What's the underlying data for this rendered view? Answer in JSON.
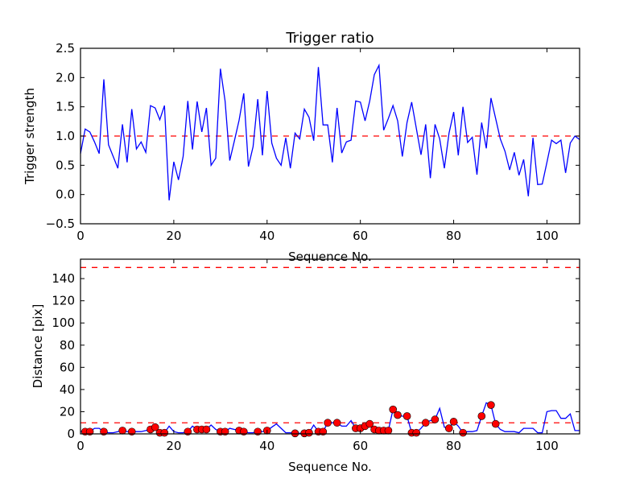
{
  "chart_data": [
    {
      "type": "line",
      "title": "Trigger ratio",
      "xlabel": "Sequence No.",
      "ylabel": "Trigger strength",
      "xlim": [
        0,
        107
      ],
      "ylim": [
        -0.5,
        2.5
      ],
      "xticks": [
        0,
        20,
        40,
        60,
        80,
        100
      ],
      "yticks": [
        -0.5,
        0.0,
        0.5,
        1.0,
        1.5,
        2.0,
        2.5
      ],
      "ytick_labels": [
        "−0.5",
        "0.0",
        "0.5",
        "1.0",
        "1.5",
        "2.0",
        "2.5"
      ],
      "grid": false,
      "thresholds": [
        {
          "value": 1.0,
          "color": "#ff0000",
          "style": "dashed"
        }
      ],
      "series": [
        {
          "name": "trigger strength",
          "color": "#0000ff",
          "values": [
            0.7,
            1.12,
            1.07,
            0.9,
            0.7,
            1.97,
            0.85,
            0.65,
            0.45,
            1.2,
            0.55,
            1.46,
            0.78,
            0.9,
            0.72,
            1.52,
            1.48,
            1.28,
            1.52,
            -0.1,
            0.56,
            0.25,
            0.65,
            1.6,
            0.77,
            1.59,
            1.07,
            1.48,
            0.5,
            0.62,
            2.15,
            1.6,
            0.58,
            0.92,
            1.27,
            1.73,
            0.48,
            0.82,
            1.63,
            0.67,
            1.77,
            0.88,
            0.62,
            0.5,
            0.97,
            0.45,
            1.05,
            0.95,
            1.46,
            1.32,
            0.92,
            2.18,
            1.19,
            1.19,
            0.55,
            1.48,
            0.71,
            0.9,
            0.93,
            1.6,
            1.58,
            1.26,
            1.6,
            2.05,
            2.21,
            1.1,
            1.3,
            1.52,
            1.26,
            0.65,
            1.23,
            1.58,
            1.13,
            0.68,
            1.2,
            0.28,
            1.2,
            0.95,
            0.45,
            1.05,
            1.41,
            0.67,
            1.5,
            0.89,
            0.98,
            0.34,
            1.23,
            0.79,
            1.65,
            1.3,
            0.95,
            0.74,
            0.42,
            0.72,
            0.33,
            0.6,
            -0.03,
            0.97,
            0.17,
            0.18,
            0.55,
            0.93,
            0.87,
            0.93,
            0.37,
            0.88,
            1.0,
            0.94
          ]
        }
      ]
    },
    {
      "type": "line",
      "title": "",
      "xlabel": "Sequence No.",
      "ylabel": "Distance [pix]",
      "xlim": [
        0,
        107
      ],
      "ylim": [
        0,
        157.5
      ],
      "xticks": [
        0,
        20,
        40,
        60,
        80,
        100
      ],
      "yticks": [
        0,
        20,
        40,
        60,
        80,
        100,
        120,
        140
      ],
      "grid": false,
      "thresholds": [
        {
          "value": 10,
          "color": "#ff0000",
          "style": "dashed"
        },
        {
          "value": 150,
          "color": "#ff0000",
          "style": "dashed"
        }
      ],
      "series": [
        {
          "name": "distance",
          "color": "#0000ff",
          "values": [
            2,
            2,
            2,
            5,
            5,
            2,
            1,
            1,
            2,
            3,
            2,
            2,
            2,
            2,
            3,
            4,
            6,
            1,
            1,
            7,
            2,
            1,
            1,
            2,
            7,
            4,
            4,
            4,
            8,
            4,
            2,
            2,
            5,
            4,
            3,
            2,
            1,
            1,
            2,
            2,
            3,
            6,
            9,
            5,
            1,
            1,
            0.5,
            0.5,
            0.5,
            1,
            8,
            2,
            2,
            10,
            10,
            10,
            7,
            7,
            12,
            5,
            5,
            7,
            9,
            4,
            3,
            3,
            3,
            22,
            17,
            16,
            16,
            1,
            1,
            5,
            10,
            12,
            13,
            23,
            6,
            5,
            11,
            7,
            1,
            2,
            2,
            3,
            16,
            28,
            26,
            9,
            4,
            2,
            2,
            2,
            1,
            5,
            5,
            5,
            1,
            1,
            20,
            21,
            21,
            14,
            14,
            18,
            3,
            3
          ]
        }
      ],
      "markers": {
        "color": "#ff0000",
        "indices": [
          1,
          2,
          5,
          9,
          11,
          15,
          16,
          17,
          18,
          23,
          25,
          26,
          27,
          30,
          31,
          34,
          35,
          38,
          40,
          46,
          48,
          49,
          51,
          52,
          53,
          55,
          59,
          60,
          61,
          62,
          63,
          64,
          65,
          66,
          67,
          68,
          70,
          71,
          72,
          74,
          76,
          79,
          80,
          82,
          86,
          88,
          89
        ]
      }
    }
  ]
}
